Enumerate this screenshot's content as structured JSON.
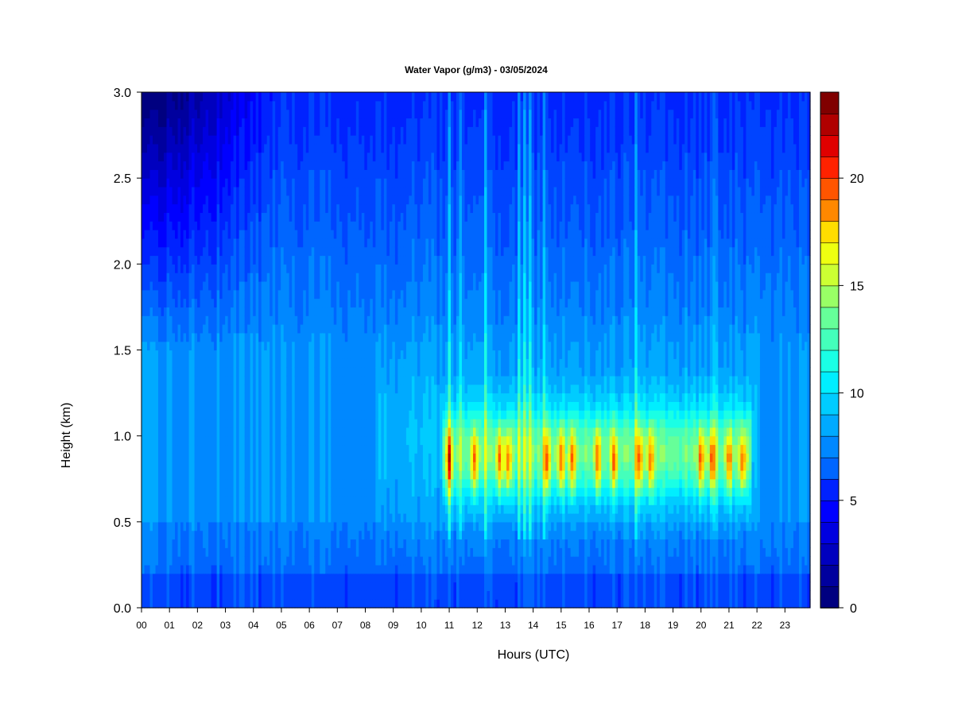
{
  "chart_data": {
    "type": "heatmap",
    "title": "Water Vapor (g/m3) - 03/05/2024",
    "xlabel": "Hours (UTC)",
    "ylabel": "Height (km)",
    "x_ticks": [
      "00",
      "01",
      "02",
      "03",
      "04",
      "05",
      "06",
      "07",
      "08",
      "09",
      "10",
      "11",
      "12",
      "13",
      "14",
      "15",
      "16",
      "17",
      "18",
      "19",
      "20",
      "21",
      "22",
      "23"
    ],
    "y_ticks": [
      "0.0",
      "0.5",
      "1.0",
      "1.5",
      "2.0",
      "2.5",
      "3.0"
    ],
    "xlim": [
      0,
      23.9
    ],
    "ylim": [
      0,
      3.0
    ],
    "colorbar": {
      "ticks": [
        "0",
        "5",
        "10",
        "15",
        "20"
      ],
      "range": [
        0,
        24
      ],
      "levels": 24,
      "colors": [
        "#000080",
        "#00009e",
        "#0000bf",
        "#0000e0",
        "#0000ff",
        "#0022ff",
        "#0044ff",
        "#0066ff",
        "#0088ff",
        "#00aaff",
        "#00ccff",
        "#00eeff",
        "#1affe5",
        "#44ffbb",
        "#66ff99",
        "#99ff66",
        "#ccff33",
        "#eeff11",
        "#ffdd00",
        "#ffbb00",
        "#ff8800",
        "#ff5500",
        "#ff2200",
        "#e00000",
        "#b00000",
        "#800000"
      ]
    },
    "grid": false,
    "profile_note": "values read from color scale: ~6-7 near surface, ~8-10 mid-levels, peaks ~20 near 0.85 km from 11 to 21.5 UTC, drier (~1-4) aloft early morning"
  }
}
